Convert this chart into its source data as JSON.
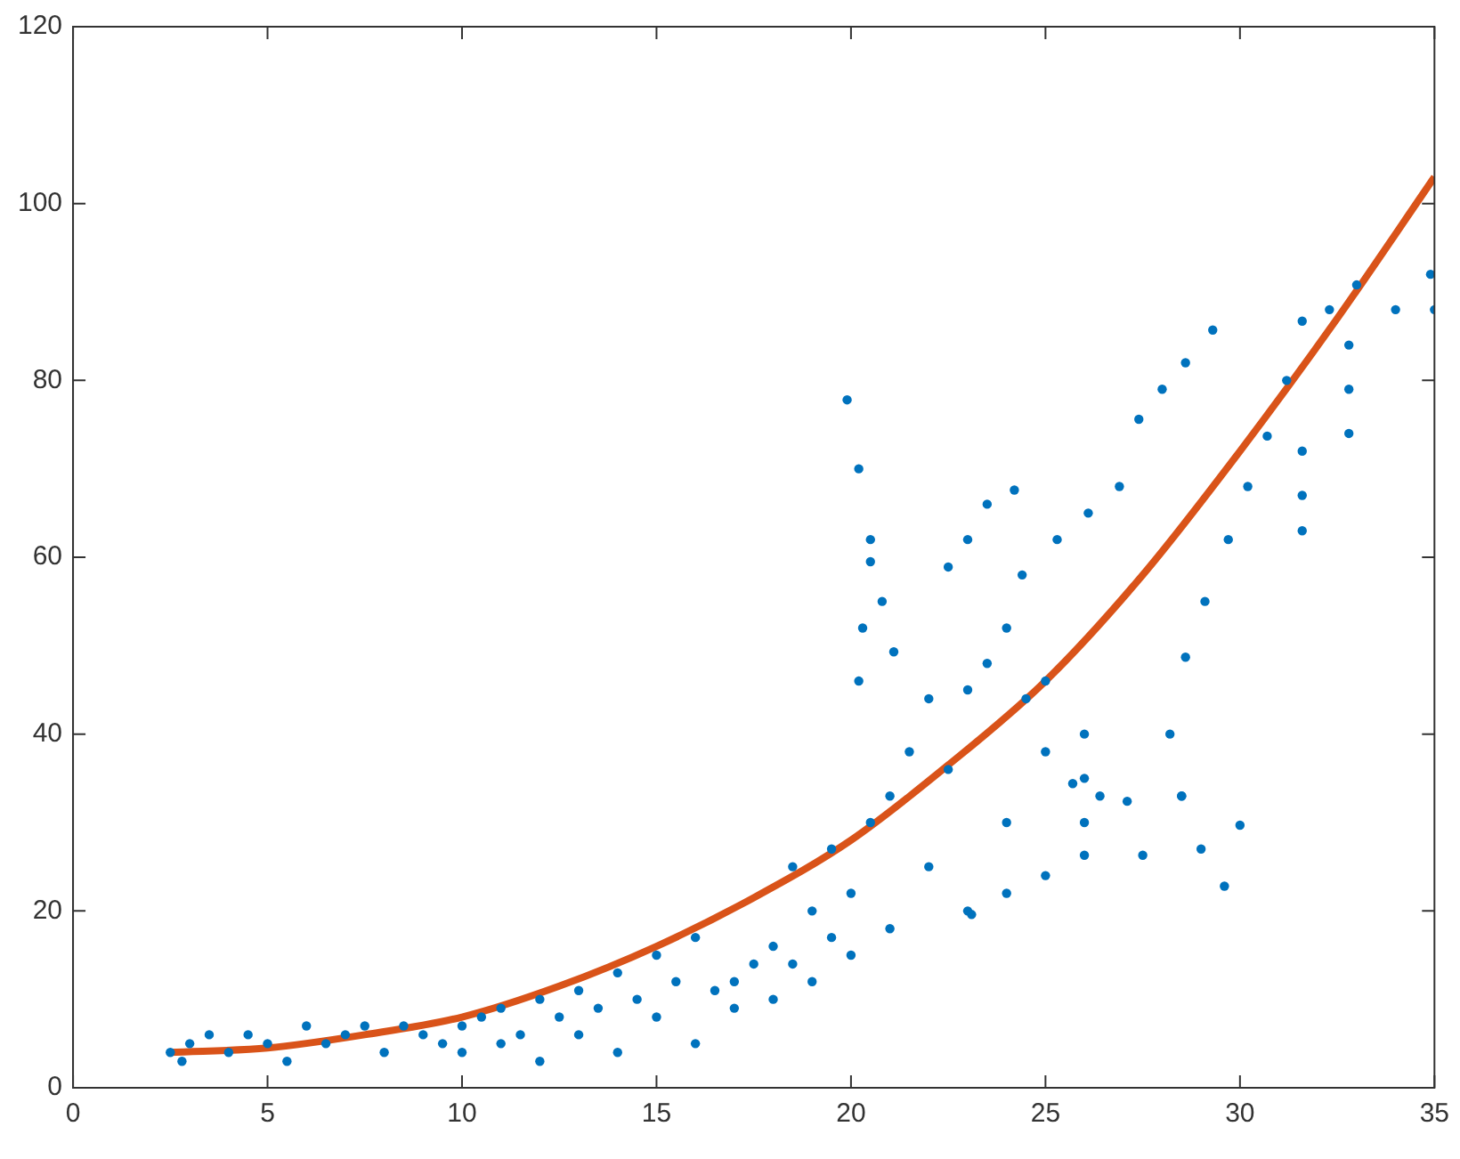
{
  "chart_data": {
    "type": "scatter",
    "xlim": [
      0,
      35
    ],
    "xticks": [
      0,
      5,
      10,
      15,
      20,
      25,
      30,
      35
    ],
    "ylim": [
      0,
      120
    ],
    "yticks": [
      0,
      20,
      40,
      60,
      80,
      100,
      120
    ],
    "grid": false,
    "legend": false,
    "series": [
      {
        "color": "#0072bd",
        "marker": "circle",
        "x": [
          2.5,
          2.8,
          3,
          3.5,
          4,
          4.5,
          5,
          5.5,
          6,
          6.5,
          7,
          7.5,
          8,
          8.5,
          9,
          9.5,
          10,
          10,
          10.5,
          11,
          11,
          11.5,
          12,
          12,
          12.5,
          13,
          13,
          13.5,
          14,
          14,
          14.5,
          15,
          15,
          15.5,
          16,
          16,
          16.5,
          17,
          17,
          17.5,
          18,
          18,
          18.5,
          18.5,
          19,
          19,
          19.5,
          19.5,
          20,
          20,
          20.5,
          21,
          21,
          21.5,
          22,
          22,
          22.5,
          23,
          23,
          23.5,
          24,
          24,
          24.5,
          25,
          25,
          19.9,
          20.2,
          20.5,
          20.8,
          21.1,
          20.5,
          20.3,
          20.2,
          22.5,
          23,
          23.5,
          24.2,
          24.4,
          25.3,
          26.1,
          26.9,
          27.4,
          28,
          28.6,
          29.3,
          28.5,
          28.2,
          28.6,
          29.1,
          29.7,
          30.2,
          30.7,
          31.2,
          31.6,
          32.3,
          33,
          34,
          34.9,
          35,
          32.8,
          32.8,
          32.8,
          31.6,
          31.6,
          31.6,
          28.5,
          29,
          29.6,
          30,
          25.7,
          26.4,
          27.1,
          23.1,
          24,
          25,
          26,
          27.5,
          26,
          26,
          26
        ],
        "values": [
          4,
          3,
          5,
          6,
          4,
          6,
          5,
          3,
          7,
          5,
          6,
          7,
          4,
          7,
          6,
          5,
          7,
          4,
          8,
          5,
          9,
          6,
          10,
          3,
          8,
          11,
          6,
          9,
          13,
          4,
          10,
          15,
          8,
          12,
          17,
          5,
          11,
          12,
          9,
          14,
          16,
          10,
          25,
          14,
          20,
          12,
          27,
          17,
          22,
          15,
          30,
          33,
          18,
          38,
          44,
          25,
          36,
          45,
          20,
          48,
          52,
          30,
          44,
          46,
          38,
          77.8,
          70,
          62,
          55,
          49.3,
          59.5,
          52,
          46,
          58.9,
          62,
          66,
          67.6,
          58,
          62,
          65,
          68,
          75.6,
          79,
          82,
          85.7,
          33,
          40,
          48.7,
          55,
          62,
          68,
          73.7,
          80,
          86.7,
          88,
          90.8,
          88,
          92,
          88,
          84,
          79,
          74,
          72,
          67,
          63,
          33,
          27,
          22.8,
          29.7,
          34.4,
          33,
          32.4,
          19.6,
          22,
          24,
          26.3,
          26.3,
          30,
          35,
          40
        ]
      },
      {
        "type": "line",
        "color": "#d95319",
        "marker": "none",
        "x": [
          2.5,
          5,
          7.5,
          10,
          12.5,
          15,
          17.5,
          20,
          22.5,
          25,
          27.5,
          30,
          32.5,
          35
        ],
        "values": [
          4,
          4.5,
          6,
          8,
          11.5,
          16,
          21.5,
          28,
          36.5,
          46,
          58,
          72,
          87,
          103
        ]
      }
    ]
  }
}
